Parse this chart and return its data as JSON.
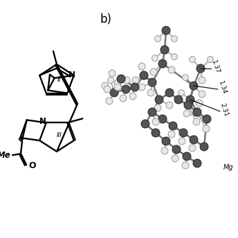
{
  "bg_color": "#ffffff",
  "label_b": "b)",
  "distances": [
    "1.37",
    "1.34",
    "2.31"
  ],
  "C_color": "#555555",
  "H_color": "#e8e8e8",
  "stick_color": "#777777",
  "dark_stick": "#333333"
}
